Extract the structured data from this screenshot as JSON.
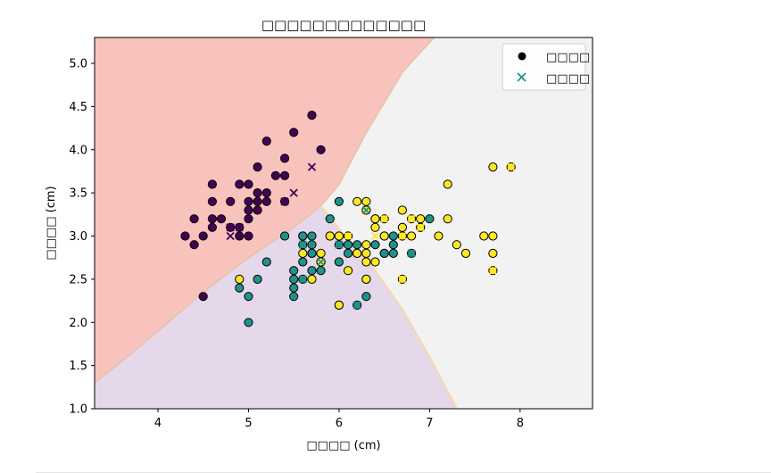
{
  "top_strip_text": "",
  "chart_data": {
    "type": "scatter",
    "title": "□□□□□□□□□□□□□",
    "xlabel": "□□□□ (cm)",
    "ylabel": "□□□□ (cm)",
    "xlim": [
      3.3,
      8.8
    ],
    "ylim": [
      1.0,
      5.3
    ],
    "x_ticks": [
      4,
      5,
      6,
      7,
      8
    ],
    "y_ticks": [
      1.0,
      1.5,
      2.0,
      2.5,
      3.0,
      3.5,
      4.0,
      4.5,
      5.0
    ],
    "grid": false,
    "legend_position": "top-right",
    "legend": [
      {
        "label": "□□□□",
        "marker": "circle"
      },
      {
        "label": "□□□□",
        "marker": "x"
      }
    ],
    "region_colors": {
      "class0": "#f9c3bd",
      "class1": "#e5d8ea",
      "class2": "#f2f2f2"
    },
    "point_colors": {
      "class0": "#440154",
      "class1": "#21918c",
      "class2": "#fde725"
    },
    "decision_boundaries": {
      "class0_upper": [
        [
          3.3,
          1.3
        ],
        [
          3.6,
          1.55
        ],
        [
          4.0,
          1.9
        ],
        [
          4.5,
          2.35
        ],
        [
          5.0,
          2.75
        ],
        [
          5.5,
          3.1
        ],
        [
          5.8,
          3.35
        ],
        [
          6.0,
          3.6
        ],
        [
          6.3,
          4.2
        ],
        [
          6.7,
          4.9
        ],
        [
          7.05,
          5.3
        ]
      ],
      "class1_right": [
        [
          5.8,
          3.35
        ],
        [
          6.1,
          2.95
        ],
        [
          6.4,
          2.6
        ],
        [
          6.7,
          2.15
        ],
        [
          7.0,
          1.6
        ],
        [
          7.3,
          1.0
        ]
      ]
    },
    "series": [
      {
        "label": "□□□□",
        "marker": "circle",
        "points": [
          {
            "x": 5.1,
            "y": 3.5,
            "c": 0
          },
          {
            "x": 4.9,
            "y": 3.0,
            "c": 0
          },
          {
            "x": 4.7,
            "y": 3.2,
            "c": 0
          },
          {
            "x": 4.6,
            "y": 3.1,
            "c": 0
          },
          {
            "x": 5.0,
            "y": 3.6,
            "c": 0
          },
          {
            "x": 5.4,
            "y": 3.9,
            "c": 0
          },
          {
            "x": 4.6,
            "y": 3.4,
            "c": 0
          },
          {
            "x": 5.0,
            "y": 3.4,
            "c": 0
          },
          {
            "x": 4.4,
            "y": 2.9,
            "c": 0
          },
          {
            "x": 5.4,
            "y": 3.7,
            "c": 0
          },
          {
            "x": 4.8,
            "y": 3.4,
            "c": 0
          },
          {
            "x": 4.3,
            "y": 3.0,
            "c": 0
          },
          {
            "x": 5.8,
            "y": 4.0,
            "c": 0
          },
          {
            "x": 5.7,
            "y": 4.4,
            "c": 0
          },
          {
            "x": 5.1,
            "y": 3.8,
            "c": 0
          },
          {
            "x": 5.2,
            "y": 4.1,
            "c": 0
          },
          {
            "x": 5.5,
            "y": 4.2,
            "c": 0
          },
          {
            "x": 4.4,
            "y": 3.2,
            "c": 0
          },
          {
            "x": 4.5,
            "y": 2.3,
            "c": 0
          },
          {
            "x": 4.6,
            "y": 3.6,
            "c": 0
          },
          {
            "x": 5.0,
            "y": 3.2,
            "c": 0
          },
          {
            "x": 5.1,
            "y": 3.3,
            "c": 0
          },
          {
            "x": 4.8,
            "y": 3.1,
            "c": 0
          },
          {
            "x": 5.0,
            "y": 3.3,
            "c": 0
          },
          {
            "x": 4.9,
            "y": 3.6,
            "c": 0
          },
          {
            "x": 5.2,
            "y": 3.4,
            "c": 0
          },
          {
            "x": 5.3,
            "y": 3.7,
            "c": 0
          },
          {
            "x": 5.4,
            "y": 3.4,
            "c": 0
          },
          {
            "x": 4.9,
            "y": 3.1,
            "c": 0
          },
          {
            "x": 5.2,
            "y": 3.5,
            "c": 0
          },
          {
            "x": 4.6,
            "y": 3.2,
            "c": 0
          },
          {
            "x": 4.5,
            "y": 3.0,
            "c": 0
          },
          {
            "x": 5.0,
            "y": 3.0,
            "c": 0
          },
          {
            "x": 5.1,
            "y": 3.4,
            "c": 0
          },
          {
            "x": 7.0,
            "y": 3.2,
            "c": 1
          },
          {
            "x": 6.4,
            "y": 3.2,
            "c": 1
          },
          {
            "x": 6.9,
            "y": 3.1,
            "c": 1
          },
          {
            "x": 5.5,
            "y": 2.3,
            "c": 1
          },
          {
            "x": 6.5,
            "y": 2.8,
            "c": 1
          },
          {
            "x": 5.7,
            "y": 2.8,
            "c": 1
          },
          {
            "x": 6.3,
            "y": 3.3,
            "c": 1
          },
          {
            "x": 4.9,
            "y": 2.4,
            "c": 1
          },
          {
            "x": 6.6,
            "y": 2.9,
            "c": 1
          },
          {
            "x": 5.2,
            "y": 2.7,
            "c": 1
          },
          {
            "x": 5.0,
            "y": 2.0,
            "c": 1
          },
          {
            "x": 5.9,
            "y": 3.0,
            "c": 1
          },
          {
            "x": 6.0,
            "y": 2.2,
            "c": 1
          },
          {
            "x": 6.1,
            "y": 2.9,
            "c": 1
          },
          {
            "x": 5.6,
            "y": 2.9,
            "c": 1
          },
          {
            "x": 5.6,
            "y": 3.0,
            "c": 1
          },
          {
            "x": 5.8,
            "y": 2.7,
            "c": 1
          },
          {
            "x": 6.2,
            "y": 2.2,
            "c": 1
          },
          {
            "x": 5.6,
            "y": 2.5,
            "c": 1
          },
          {
            "x": 5.9,
            "y": 3.2,
            "c": 1
          },
          {
            "x": 6.1,
            "y": 2.8,
            "c": 1
          },
          {
            "x": 6.3,
            "y": 2.5,
            "c": 1
          },
          {
            "x": 6.4,
            "y": 2.9,
            "c": 1
          },
          {
            "x": 6.6,
            "y": 3.0,
            "c": 1
          },
          {
            "x": 6.8,
            "y": 2.8,
            "c": 1
          },
          {
            "x": 6.7,
            "y": 3.0,
            "c": 1
          },
          {
            "x": 6.0,
            "y": 2.9,
            "c": 1
          },
          {
            "x": 5.7,
            "y": 2.6,
            "c": 1
          },
          {
            "x": 5.5,
            "y": 2.4,
            "c": 1
          },
          {
            "x": 5.8,
            "y": 2.7,
            "c": 1
          },
          {
            "x": 6.0,
            "y": 2.7,
            "c": 1
          },
          {
            "x": 5.4,
            "y": 3.0,
            "c": 1
          },
          {
            "x": 6.0,
            "y": 3.4,
            "c": 1
          },
          {
            "x": 6.7,
            "y": 3.1,
            "c": 1
          },
          {
            "x": 6.3,
            "y": 2.3,
            "c": 1
          },
          {
            "x": 5.6,
            "y": 3.0,
            "c": 1
          },
          {
            "x": 5.5,
            "y": 2.5,
            "c": 1
          },
          {
            "x": 5.5,
            "y": 2.6,
            "c": 1
          },
          {
            "x": 6.1,
            "y": 3.0,
            "c": 1
          },
          {
            "x": 5.8,
            "y": 2.6,
            "c": 1
          },
          {
            "x": 5.0,
            "y": 2.3,
            "c": 1
          },
          {
            "x": 5.6,
            "y": 2.7,
            "c": 1
          },
          {
            "x": 5.7,
            "y": 3.0,
            "c": 1
          },
          {
            "x": 5.7,
            "y": 2.9,
            "c": 1
          },
          {
            "x": 6.2,
            "y": 2.9,
            "c": 1
          },
          {
            "x": 5.1,
            "y": 2.5,
            "c": 1
          },
          {
            "x": 5.7,
            "y": 2.8,
            "c": 1
          },
          {
            "x": 6.5,
            "y": 2.8,
            "c": 1
          },
          {
            "x": 6.6,
            "y": 2.8,
            "c": 1
          },
          {
            "x": 6.2,
            "y": 2.8,
            "c": 1
          },
          {
            "x": 6.3,
            "y": 3.3,
            "c": 2
          },
          {
            "x": 5.8,
            "y": 2.7,
            "c": 2
          },
          {
            "x": 7.1,
            "y": 3.0,
            "c": 2
          },
          {
            "x": 6.3,
            "y": 2.9,
            "c": 2
          },
          {
            "x": 6.5,
            "y": 3.0,
            "c": 2
          },
          {
            "x": 7.6,
            "y": 3.0,
            "c": 2
          },
          {
            "x": 4.9,
            "y": 2.5,
            "c": 2
          },
          {
            "x": 7.3,
            "y": 2.9,
            "c": 2
          },
          {
            "x": 6.7,
            "y": 2.5,
            "c": 2
          },
          {
            "x": 7.2,
            "y": 3.6,
            "c": 2
          },
          {
            "x": 6.5,
            "y": 3.2,
            "c": 2
          },
          {
            "x": 6.4,
            "y": 2.7,
            "c": 2
          },
          {
            "x": 6.8,
            "y": 3.0,
            "c": 2
          },
          {
            "x": 5.7,
            "y": 2.5,
            "c": 2
          },
          {
            "x": 5.8,
            "y": 2.8,
            "c": 2
          },
          {
            "x": 6.4,
            "y": 3.2,
            "c": 2
          },
          {
            "x": 7.7,
            "y": 3.8,
            "c": 2
          },
          {
            "x": 7.7,
            "y": 2.6,
            "c": 2
          },
          {
            "x": 6.0,
            "y": 2.2,
            "c": 2
          },
          {
            "x": 6.9,
            "y": 3.2,
            "c": 2
          },
          {
            "x": 5.6,
            "y": 2.8,
            "c": 2
          },
          {
            "x": 7.7,
            "y": 2.8,
            "c": 2
          },
          {
            "x": 6.3,
            "y": 2.7,
            "c": 2
          },
          {
            "x": 6.7,
            "y": 3.3,
            "c": 2
          },
          {
            "x": 7.2,
            "y": 3.2,
            "c": 2
          },
          {
            "x": 6.2,
            "y": 2.8,
            "c": 2
          },
          {
            "x": 6.1,
            "y": 3.0,
            "c": 2
          },
          {
            "x": 7.4,
            "y": 2.8,
            "c": 2
          },
          {
            "x": 7.9,
            "y": 3.8,
            "c": 2
          },
          {
            "x": 6.3,
            "y": 2.8,
            "c": 2
          },
          {
            "x": 6.1,
            "y": 2.6,
            "c": 2
          },
          {
            "x": 7.7,
            "y": 3.0,
            "c": 2
          },
          {
            "x": 6.3,
            "y": 3.4,
            "c": 2
          },
          {
            "x": 6.4,
            "y": 3.1,
            "c": 2
          },
          {
            "x": 6.0,
            "y": 3.0,
            "c": 2
          },
          {
            "x": 6.9,
            "y": 3.1,
            "c": 2
          },
          {
            "x": 6.7,
            "y": 3.1,
            "c": 2
          },
          {
            "x": 5.8,
            "y": 2.7,
            "c": 2
          },
          {
            "x": 6.8,
            "y": 3.2,
            "c": 2
          },
          {
            "x": 6.7,
            "y": 3.0,
            "c": 2
          },
          {
            "x": 6.3,
            "y": 2.5,
            "c": 2
          },
          {
            "x": 6.5,
            "y": 3.0,
            "c": 2
          },
          {
            "x": 6.2,
            "y": 3.4,
            "c": 2
          },
          {
            "x": 5.9,
            "y": 3.0,
            "c": 2
          }
        ]
      },
      {
        "label": "□□□□",
        "marker": "x",
        "points": [
          {
            "x": 5.7,
            "y": 3.8,
            "c": 0
          },
          {
            "x": 5.5,
            "y": 3.5,
            "c": 0
          },
          {
            "x": 4.8,
            "y": 3.0,
            "c": 0
          },
          {
            "x": 4.9,
            "y": 3.1,
            "c": 0
          },
          {
            "x": 4.8,
            "y": 3.1,
            "c": 0
          },
          {
            "x": 5.4,
            "y": 3.4,
            "c": 0
          },
          {
            "x": 5.6,
            "y": 2.5,
            "c": 1
          },
          {
            "x": 5.6,
            "y": 2.9,
            "c": 1
          },
          {
            "x": 6.0,
            "y": 2.9,
            "c": 1
          },
          {
            "x": 6.2,
            "y": 2.2,
            "c": 1
          },
          {
            "x": 6.8,
            "y": 2.8,
            "c": 1
          },
          {
            "x": 6.3,
            "y": 3.3,
            "c": 1
          },
          {
            "x": 5.8,
            "y": 2.7,
            "c": 1
          },
          {
            "x": 6.7,
            "y": 2.5,
            "c": 2
          },
          {
            "x": 7.7,
            "y": 2.6,
            "c": 2
          },
          {
            "x": 7.9,
            "y": 3.8,
            "c": 2
          },
          {
            "x": 6.5,
            "y": 3.2,
            "c": 2
          },
          {
            "x": 6.9,
            "y": 3.1,
            "c": 2
          },
          {
            "x": 6.1,
            "y": 3.0,
            "c": 2
          },
          {
            "x": 6.4,
            "y": 3.0,
            "c": 2
          },
          {
            "x": 6.7,
            "y": 3.0,
            "c": 2
          },
          {
            "x": 6.8,
            "y": 3.2,
            "c": 2
          }
        ]
      }
    ]
  }
}
